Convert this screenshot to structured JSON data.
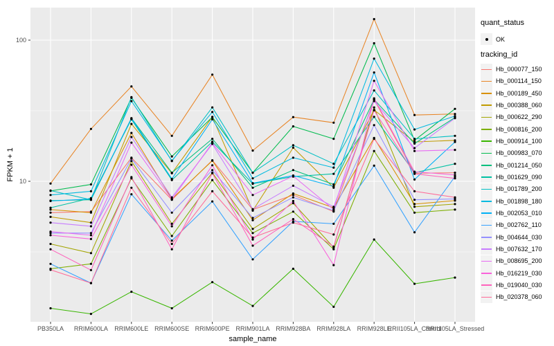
{
  "axes": {
    "x_title": "sample_name",
    "y_title": "FPKM + 1"
  },
  "legend": {
    "quant_title": "quant_status",
    "quant_ok_label": "OK",
    "tracking_title": "tracking_id"
  },
  "style": {
    "panel_bg": "#EBEBEB",
    "grid_color": "#FFFFFF",
    "tick_label_color": "#4d4d4d",
    "tick_mark_color": "#333333",
    "point_color": "#000000"
  },
  "chart_data": {
    "type": "line",
    "title": "",
    "xlabel": "sample_name",
    "ylabel": "FPKM + 1",
    "y_scale": "log10",
    "ylim": [
      1,
      170
    ],
    "y_tick_values": [
      10,
      100
    ],
    "y_tick_labels": [
      "10",
      "100"
    ],
    "grid": true,
    "legend_position": "right",
    "point_marker": "filled-circle",
    "quant_status": "OK",
    "categories": [
      "PB350LA",
      "RRIM600LA",
      "RRIM600LE",
      "RRIM600SE",
      "RRIM600PE",
      "RRIM901LA",
      "RRIM928BA",
      "RRIM928LA",
      "RRIM928LE",
      "RRII105LA_Control",
      "RRII105LA_Stressed"
    ],
    "series": [
      {
        "name": "Hb_000077_150",
        "color": "#F8766D",
        "values": [
          6.0,
          6.1,
          14.7,
          7.4,
          14.1,
          6.3,
          8.0,
          6.1,
          38,
          11.4,
          11.5
        ]
      },
      {
        "name": "Hb_000114_150",
        "color": "#E88526",
        "values": [
          9.65,
          23.5,
          47,
          21,
          57,
          16.5,
          28.5,
          26,
          141,
          29.5,
          30
        ]
      },
      {
        "name": "Hb_000189_450",
        "color": "#D89000",
        "values": [
          6.3,
          6.0,
          22,
          7.5,
          14,
          5.3,
          8.2,
          6.5,
          20.3,
          6.9,
          7.3
        ]
      },
      {
        "name": "Hb_000388_060",
        "color": "#C09B00",
        "values": [
          5.6,
          5.1,
          25.5,
          11.4,
          28.6,
          6.2,
          17.3,
          9.0,
          32,
          19,
          19.5
        ]
      },
      {
        "name": "Hb_000622_290",
        "color": "#A3A500",
        "values": [
          3.6,
          3.1,
          13.9,
          5.0,
          11.5,
          4.6,
          7.0,
          3.4,
          33.4,
          6.6,
          6.9
        ]
      },
      {
        "name": "Hb_000816_200",
        "color": "#7CAE00",
        "values": [
          2.4,
          2.6,
          10.5,
          4.1,
          10.2,
          4.3,
          6.1,
          3.3,
          16.4,
          6.0,
          6.3
        ]
      },
      {
        "name": "Hb_000914_100",
        "color": "#39B600",
        "values": [
          1.26,
          1.15,
          1.65,
          1.26,
          1.93,
          1.31,
          2.4,
          1.29,
          3.87,
          1.88,
          2.08
        ]
      },
      {
        "name": "Hb_000983_070",
        "color": "#00BB4E",
        "values": [
          8.55,
          9.5,
          39,
          15,
          28.5,
          11.5,
          24.5,
          20,
          95,
          19.5,
          32.6
        ]
      },
      {
        "name": "Hb_001214_050",
        "color": "#00BF7D",
        "values": [
          7.3,
          7.4,
          28,
          11.5,
          20,
          9.0,
          12,
          9.5,
          38,
          18.5,
          28.3
        ]
      },
      {
        "name": "Hb_001629_090",
        "color": "#00C1A3",
        "values": [
          6.5,
          7.6,
          27.5,
          10.2,
          19.1,
          9.6,
          10.8,
          11.3,
          28.6,
          11.5,
          13.3
        ]
      },
      {
        "name": "Hb_001789_200",
        "color": "#00BFC4",
        "values": [
          8.6,
          7.4,
          39.5,
          13.9,
          33.4,
          11.5,
          18,
          13.3,
          44,
          20,
          21
        ]
      },
      {
        "name": "Hb_001898_180",
        "color": "#00BAE0",
        "values": [
          8.0,
          8.5,
          37,
          14,
          31,
          10.5,
          14.7,
          12.5,
          74,
          23.3,
          29
        ]
      },
      {
        "name": "Hb_002053_010",
        "color": "#00B0F6",
        "values": [
          7.25,
          7.5,
          28,
          10.4,
          27.5,
          9.7,
          11,
          9.2,
          59,
          10.3,
          19
        ]
      },
      {
        "name": "Hb_002762_110",
        "color": "#35A2FF",
        "values": [
          2.6,
          1.9,
          8.1,
          3.8,
          7.2,
          2.8,
          5.2,
          5.0,
          12.9,
          4.35,
          10.8
        ]
      },
      {
        "name": "Hb_004644_030",
        "color": "#9590FF",
        "values": [
          4.3,
          4.3,
          14.5,
          6.0,
          12,
          5.5,
          7.7,
          6.2,
          25,
          7.4,
          7.5
        ]
      },
      {
        "name": "Hb_007632_170",
        "color": "#C77CFF",
        "values": [
          5.1,
          4.8,
          20.6,
          7.7,
          18.4,
          6.35,
          9.3,
          6.6,
          37,
          17.2,
          28
        ]
      },
      {
        "name": "Hb_008695_200",
        "color": "#E76BF3",
        "values": [
          4.4,
          4.15,
          18.8,
          7.45,
          18.7,
          8.0,
          10.9,
          6.3,
          51.5,
          16.4,
          16.7
        ]
      },
      {
        "name": "Hb_016219_030",
        "color": "#FA62DB",
        "values": [
          4.15,
          3.9,
          13.1,
          4.8,
          13,
          3.87,
          7.25,
          2.55,
          38.7,
          11.7,
          11.1
        ]
      },
      {
        "name": "Hb_019040_030",
        "color": "#FF62BC",
        "values": [
          3.3,
          2.35,
          10.7,
          3.3,
          11.4,
          3.5,
          5.4,
          3.45,
          31.8,
          11.3,
          10.5
        ]
      },
      {
        "name": "Hb_020378_060",
        "color": "#FF6A98",
        "values": [
          2.36,
          1.9,
          9.0,
          3.6,
          8.5,
          4.0,
          5.1,
          4.2,
          20,
          8.5,
          7.7
        ]
      }
    ]
  }
}
